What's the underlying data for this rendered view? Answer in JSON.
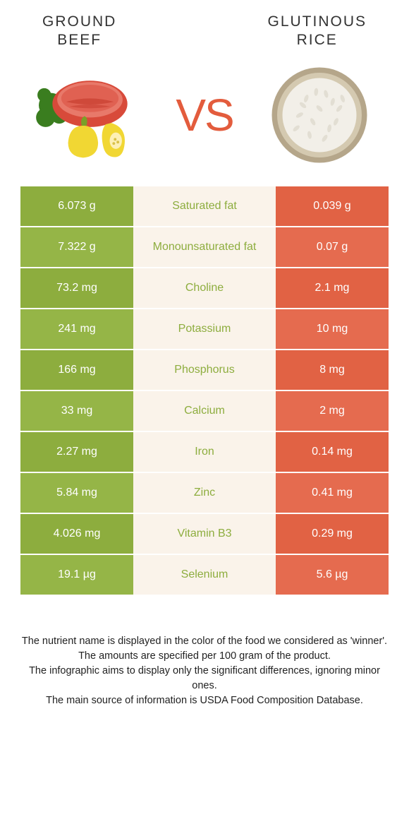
{
  "colors": {
    "left_food": "#8dad3e",
    "right_food": "#e16244",
    "mid_bg": "#faf3ea",
    "vs_text": "#e35c3d",
    "white": "#ffffff",
    "left_alt": "#95b547",
    "right_alt": "#e56b4f"
  },
  "header": {
    "left_title": "GROUND\nBEEF",
    "right_title": "GLUTINOUS\nRICE",
    "vs": "VS"
  },
  "rows": [
    {
      "left": "6.073 g",
      "label": "Saturated fat",
      "right": "0.039 g",
      "winner": "left"
    },
    {
      "left": "7.322 g",
      "label": "Monounsaturated fat",
      "right": "0.07 g",
      "winner": "left"
    },
    {
      "left": "73.2 mg",
      "label": "Choline",
      "right": "2.1 mg",
      "winner": "left"
    },
    {
      "left": "241 mg",
      "label": "Potassium",
      "right": "10 mg",
      "winner": "left"
    },
    {
      "left": "166 mg",
      "label": "Phosphorus",
      "right": "8 mg",
      "winner": "left"
    },
    {
      "left": "33 mg",
      "label": "Calcium",
      "right": "2 mg",
      "winner": "left"
    },
    {
      "left": "2.27 mg",
      "label": "Iron",
      "right": "0.14 mg",
      "winner": "left"
    },
    {
      "left": "5.84 mg",
      "label": "Zinc",
      "right": "0.41 mg",
      "winner": "left"
    },
    {
      "left": "4.026 mg",
      "label": "Vitamin B3",
      "right": "0.29 mg",
      "winner": "left"
    },
    {
      "left": "19.1 µg",
      "label": "Selenium",
      "right": "5.6 µg",
      "winner": "left"
    }
  ],
  "footer": {
    "line1": "The nutrient name is displayed in the color of the food we considered as 'winner'.",
    "line2": "The amounts are specified per 100 gram of the product.",
    "line3": "The infographic aims to display only the significant differences, ignoring minor ones.",
    "line4": "The main source of information is USDA Food Composition Database."
  }
}
